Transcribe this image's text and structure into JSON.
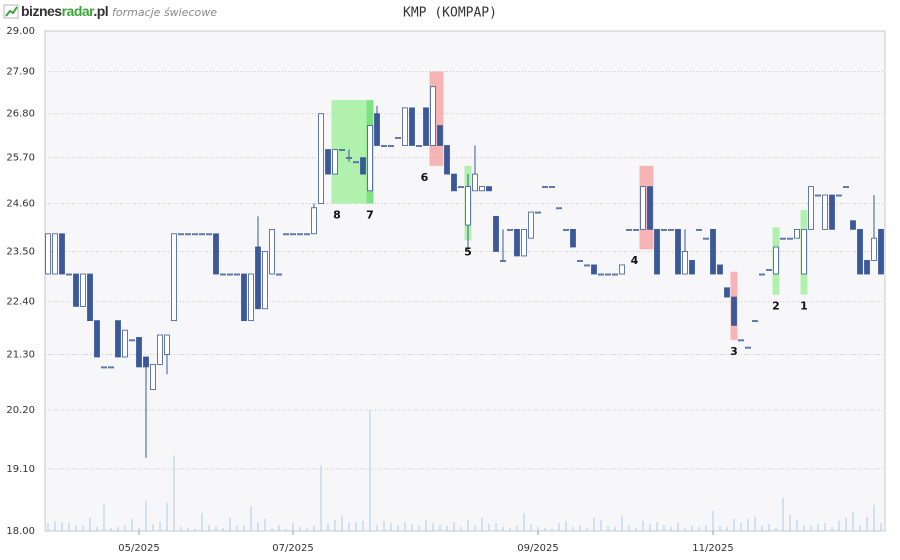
{
  "header": {
    "logo": [
      "biznes",
      "radar",
      ".pl"
    ],
    "subtitle": "formacje świecowe"
  },
  "chart_data": {
    "type": "candlestick",
    "title": "KMP (KOMPAP)",
    "log": true,
    "grid": true,
    "up_color": "#ffffff",
    "down_color": "#3b5998",
    "edge_color": "#3b5998",
    "volume_color": "#a9cdea",
    "ylim": [
      18,
      29
    ],
    "yticks": [
      {
        "value": 18,
        "label": "18.00"
      },
      {
        "value": 19.1,
        "label": "19.10"
      },
      {
        "value": 20.2,
        "label": "20.20"
      },
      {
        "value": 21.3,
        "label": "21.30"
      },
      {
        "value": 22.4,
        "label": "22.40"
      },
      {
        "value": 23.5,
        "label": "23.50"
      },
      {
        "value": 24.6,
        "label": "24.60"
      },
      {
        "value": 25.7,
        "label": "25.70"
      },
      {
        "value": 26.8,
        "label": "26.80"
      },
      {
        "value": 27.9,
        "label": "27.90"
      },
      {
        "value": 29,
        "label": "29.00"
      }
    ],
    "categories": [
      null,
      null,
      null,
      null,
      null,
      null,
      null,
      null,
      null,
      null,
      null,
      null,
      null,
      "05/2025",
      null,
      null,
      null,
      null,
      null,
      null,
      null,
      null,
      null,
      null,
      null,
      null,
      null,
      null,
      null,
      null,
      null,
      null,
      null,
      null,
      null,
      "07/2025",
      null,
      null,
      null,
      null,
      null,
      null,
      null,
      null,
      null,
      null,
      null,
      null,
      null,
      null,
      null,
      null,
      null,
      null,
      null,
      null,
      null,
      null,
      null,
      null,
      null,
      null,
      null,
      null,
      null,
      null,
      null,
      null,
      null,
      null,
      "09/2025",
      null,
      null,
      null,
      null,
      null,
      null,
      null,
      null,
      null,
      null,
      null,
      null,
      null,
      null,
      null,
      null,
      null,
      null,
      null,
      null,
      null,
      null,
      null,
      null,
      "11/2025",
      null,
      null,
      null,
      null,
      null,
      null,
      null,
      null,
      null,
      null,
      null,
      null,
      null,
      null,
      null,
      null,
      null,
      null,
      null,
      null,
      null,
      null,
      null,
      null
    ],
    "open": [
      23.0,
      23.0,
      23.9,
      23.0,
      23.0,
      22.3,
      23.0,
      22.0,
      21.05,
      21.05,
      22.0,
      21.25,
      21.6,
      21.65,
      21.25,
      20.6,
      21.1,
      21.3,
      22.0,
      23.9,
      23.9,
      23.9,
      23.9,
      23.9,
      23.9,
      23.0,
      23.0,
      23.0,
      23.0,
      22.0,
      23.6,
      22.25,
      23.0,
      23.0,
      23.9,
      23.9,
      23.9,
      23.9,
      23.9,
      24.6,
      25.9,
      25.3,
      25.9,
      25.7,
      25.6,
      25.7,
      24.9,
      26.8,
      26.0,
      26.0,
      26.2,
      26.0,
      26.95,
      26.0,
      26.95,
      26.0,
      26.5,
      26.0,
      25.3,
      25.0,
      24.1,
      24.9,
      24.9,
      25.0,
      24.3,
      23.3,
      24.0,
      24.0,
      23.4,
      23.8,
      24.4,
      25.0,
      25.0,
      24.5,
      24.0,
      24.0,
      23.3,
      23.2,
      23.2,
      23.0,
      23.0,
      23.0,
      23.0,
      24.0,
      24.0,
      24.0,
      25.0,
      24.0,
      24.0,
      24.0,
      24.0,
      23.0,
      23.3,
      24.0,
      23.8,
      24.0,
      23.2,
      22.7,
      22.5,
      21.6,
      21.45,
      22.0,
      23.0,
      23.1,
      23.0,
      23.8,
      23.8,
      23.8,
      23.0,
      24.0,
      24.8,
      24.0,
      24.8,
      24.8,
      25.0,
      24.2,
      24.0,
      23.3,
      23.3,
      24.0
    ],
    "high": [
      23.9,
      23.9,
      23.9,
      23.0,
      23.0,
      23.0,
      23.0,
      22.0,
      21.05,
      21.05,
      22.0,
      21.8,
      21.6,
      21.65,
      21.25,
      21.1,
      21.7,
      21.7,
      23.9,
      23.9,
      23.9,
      23.9,
      23.9,
      23.9,
      23.9,
      23.0,
      23.0,
      23.0,
      23.0,
      23.0,
      24.3,
      23.5,
      24.0,
      23.0,
      23.9,
      23.9,
      23.9,
      23.9,
      24.6,
      26.8,
      25.9,
      25.9,
      25.9,
      25.9,
      25.6,
      25.7,
      26.5,
      27.0,
      26.0,
      26.0,
      26.2,
      26.95,
      26.95,
      26.0,
      26.95,
      27.5,
      26.5,
      26.0,
      25.3,
      25.0,
      25.3,
      26.0,
      25.0,
      25.0,
      24.3,
      24.0,
      24.0,
      24.0,
      24.0,
      24.4,
      24.4,
      25.0,
      25.0,
      24.5,
      24.0,
      24.0,
      23.3,
      23.2,
      23.2,
      23.0,
      23.0,
      23.0,
      23.2,
      24.0,
      24.0,
      25.0,
      25.0,
      24.0,
      24.0,
      24.0,
      24.0,
      24.0,
      23.3,
      24.0,
      23.8,
      24.0,
      23.2,
      22.7,
      22.5,
      21.6,
      21.45,
      22.0,
      23.0,
      23.1,
      23.6,
      23.8,
      23.8,
      24.0,
      24.0,
      25.0,
      24.8,
      24.8,
      24.8,
      24.8,
      25.0,
      24.2,
      24.0,
      23.3,
      24.8,
      24.0
    ],
    "low": [
      23.0,
      23.0,
      23.0,
      23.0,
      22.3,
      22.3,
      22.0,
      21.25,
      21.05,
      21.05,
      21.25,
      21.25,
      21.6,
      21.05,
      19.3,
      20.6,
      21.1,
      20.9,
      22.0,
      23.9,
      23.9,
      23.9,
      23.9,
      23.9,
      23.0,
      23.0,
      23.0,
      23.0,
      22.0,
      22.0,
      22.25,
      22.25,
      23.0,
      23.0,
      23.9,
      23.9,
      23.9,
      23.9,
      23.9,
      24.6,
      25.3,
      25.3,
      25.9,
      25.6,
      25.6,
      25.3,
      24.9,
      26.0,
      26.0,
      26.0,
      26.2,
      26.0,
      26.0,
      26.0,
      26.0,
      26.0,
      26.0,
      25.3,
      24.9,
      25.0,
      23.5,
      24.9,
      24.9,
      24.9,
      23.5,
      23.3,
      24.0,
      23.4,
      23.4,
      23.8,
      24.4,
      25.0,
      25.0,
      24.5,
      24.0,
      23.6,
      23.3,
      23.2,
      23.0,
      23.0,
      23.0,
      23.0,
      23.0,
      24.0,
      24.0,
      24.0,
      24.0,
      23.0,
      24.0,
      24.0,
      23.0,
      23.0,
      23.0,
      24.0,
      23.8,
      23.0,
      23.0,
      22.5,
      21.9,
      21.6,
      21.45,
      22.0,
      23.0,
      23.1,
      23.0,
      23.8,
      23.8,
      23.8,
      23.0,
      24.0,
      24.8,
      24.0,
      24.0,
      24.8,
      25.0,
      24.0,
      23.0,
      23.0,
      23.3,
      23.0
    ],
    "close": [
      23.9,
      23.9,
      23.0,
      23.0,
      22.3,
      23.0,
      22.0,
      21.25,
      21.05,
      21.05,
      21.25,
      21.8,
      21.6,
      21.05,
      21.05,
      21.1,
      21.7,
      21.7,
      23.9,
      23.9,
      23.9,
      23.9,
      23.9,
      23.9,
      23.0,
      23.0,
      23.0,
      23.0,
      22.0,
      23.0,
      22.25,
      23.5,
      24.0,
      23.0,
      23.9,
      23.9,
      23.9,
      23.9,
      24.5,
      26.8,
      25.3,
      25.9,
      25.9,
      25.7,
      25.6,
      25.3,
      26.5,
      26.0,
      26.0,
      26.0,
      26.2,
      26.95,
      26.0,
      26.0,
      26.0,
      27.5,
      26.0,
      25.3,
      24.9,
      25.0,
      25.0,
      25.3,
      25.0,
      24.9,
      23.5,
      23.3,
      24.0,
      23.4,
      24.0,
      24.4,
      24.4,
      25.0,
      25.0,
      24.5,
      24.0,
      23.6,
      23.3,
      23.2,
      23.0,
      23.0,
      23.0,
      23.0,
      23.2,
      24.0,
      24.0,
      25.0,
      24.0,
      23.0,
      24.0,
      24.0,
      23.0,
      23.5,
      23.0,
      24.0,
      23.8,
      23.0,
      23.0,
      22.5,
      21.9,
      21.6,
      21.45,
      22.0,
      23.0,
      23.1,
      23.6,
      23.8,
      23.8,
      24.0,
      24.0,
      25.0,
      24.8,
      24.8,
      24.0,
      24.8,
      25.0,
      24.0,
      23.0,
      23.0,
      23.8,
      23.0
    ],
    "volume": [
      8,
      10,
      9,
      8,
      6,
      5,
      13,
      4,
      27,
      3,
      4,
      6,
      12,
      3,
      30,
      7,
      9,
      28,
      75,
      4,
      3,
      2,
      18,
      6,
      5,
      3,
      13,
      5,
      6,
      25,
      9,
      12,
      3,
      6,
      2,
      8,
      4,
      3,
      5,
      65,
      7,
      11,
      15,
      8,
      9,
      10,
      120,
      6,
      10,
      8,
      6,
      9,
      7,
      5,
      11,
      8,
      6,
      5,
      9,
      4,
      11,
      6,
      13,
      7,
      8,
      4,
      3,
      5,
      18,
      7,
      4,
      3,
      2,
      8,
      10,
      4,
      6,
      3,
      13,
      11,
      5,
      4,
      15,
      6,
      3,
      10,
      7,
      9,
      6,
      4,
      8,
      3,
      5,
      4,
      6,
      20,
      5,
      4,
      12,
      8,
      12,
      14,
      5,
      7,
      3,
      33,
      16,
      11,
      6,
      5,
      7,
      8,
      4,
      10,
      13,
      19,
      6,
      14,
      26,
      8
    ],
    "patterns": [
      {
        "label": "8",
        "start": 41,
        "end": 45,
        "low": 24.6,
        "high": 27.15,
        "color": "#9ef09a"
      },
      {
        "label": "7",
        "start": 46,
        "end": 46,
        "low": 24.6,
        "high": 27.15,
        "color": "#5fdc5f"
      },
      {
        "label": "6",
        "start": 55,
        "end": 56,
        "low": 25.5,
        "high": 27.9,
        "color": "#f5a3a3"
      },
      {
        "label": "5",
        "start": 60,
        "end": 60,
        "low": 23.75,
        "high": 25.5,
        "color": "#9ef09a"
      },
      {
        "label": "4",
        "start": 85,
        "end": 86,
        "low": 23.55,
        "high": 25.5,
        "color": "#f5a3a3"
      },
      {
        "label": "3",
        "start": 98,
        "end": 98,
        "low": 21.6,
        "high": 23.05,
        "color": "#f5a3a3"
      },
      {
        "label": "2",
        "start": 104,
        "end": 104,
        "low": 22.55,
        "high": 24.05,
        "color": "#9ef09a"
      },
      {
        "label": "1",
        "start": 108,
        "end": 108,
        "low": 22.55,
        "high": 24.45,
        "color": "#9ef09a"
      }
    ]
  }
}
